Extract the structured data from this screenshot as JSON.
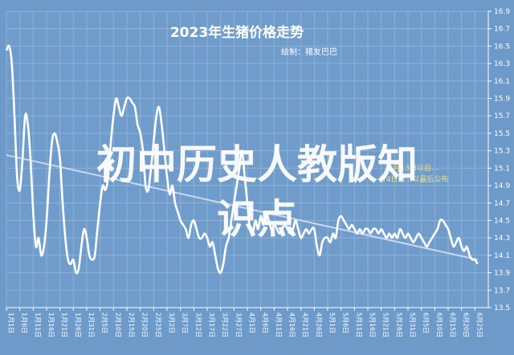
{
  "chart_data": {
    "type": "line",
    "title": "2023年生猪价格走势",
    "subtitle": "绘制：猪友巴巴",
    "xlabel": "",
    "ylabel": "",
    "ylim": [
      13.5,
      16.9
    ],
    "yticks": [
      "16.9",
      "16.7",
      "16.5",
      "16.3",
      "16.1",
      "15.9",
      "15.7",
      "15.5",
      "15.3",
      "15.1",
      "14.9",
      "14.7",
      "14.5",
      "14.3",
      "14.1",
      "13.9",
      "13.7",
      "13.5"
    ],
    "x_tick_labels": [
      "1月1日",
      "1月6日",
      "1月11日",
      "1月16日",
      "1月21日",
      "1月26日",
      "1月31日",
      "2月5日",
      "2月10日",
      "2月15日",
      "2月20日",
      "2月25日",
      "3月2日",
      "3月7日",
      "3月12日",
      "3月17日",
      "3月22日",
      "3月27日",
      "4月1日",
      "4月6日",
      "4月11日",
      "4月16日",
      "4月21日",
      "4月26日",
      "5月1日",
      "5月6日",
      "5月11日",
      "5月16日",
      "5月21日",
      "5月26日",
      "5月31日",
      "6月5日",
      "6月10日",
      "6月15日",
      "6月20日",
      "6月25日"
    ],
    "x_start": "2023-01-01",
    "x_end": "2023-06-30",
    "grid": true,
    "series": [
      {
        "name": "",
        "color": "#ffffff",
        "points": [
          [
            "2023-01-01",
            16.45
          ],
          [
            "2023-01-02",
            16.5
          ],
          [
            "2023-01-03",
            16.3
          ],
          [
            "2023-01-04",
            15.7
          ],
          [
            "2023-01-05",
            15.0
          ],
          [
            "2023-01-06",
            14.85
          ],
          [
            "2023-01-07",
            15.2
          ],
          [
            "2023-01-08",
            15.7
          ],
          [
            "2023-01-09",
            15.6
          ],
          [
            "2023-01-10",
            15.2
          ],
          [
            "2023-01-11",
            14.6
          ],
          [
            "2023-01-12",
            14.2
          ],
          [
            "2023-01-13",
            14.3
          ],
          [
            "2023-01-14",
            14.1
          ],
          [
            "2023-01-15",
            14.2
          ],
          [
            "2023-01-16",
            14.5
          ],
          [
            "2023-01-17",
            15.0
          ],
          [
            "2023-01-18",
            15.4
          ],
          [
            "2023-01-19",
            15.5
          ],
          [
            "2023-01-20",
            15.4
          ],
          [
            "2023-01-21",
            15.2
          ],
          [
            "2023-01-22",
            14.7
          ],
          [
            "2023-01-23",
            14.3
          ],
          [
            "2023-01-24",
            14.05
          ],
          [
            "2023-01-25",
            14.0
          ],
          [
            "2023-01-26",
            14.05
          ],
          [
            "2023-01-27",
            13.9
          ],
          [
            "2023-01-28",
            13.95
          ],
          [
            "2023-01-29",
            14.2
          ],
          [
            "2023-01-30",
            14.4
          ],
          [
            "2023-01-31",
            14.3
          ],
          [
            "2023-02-01",
            14.1
          ],
          [
            "2023-02-02",
            14.05
          ],
          [
            "2023-02-03",
            14.1
          ],
          [
            "2023-02-04",
            14.4
          ],
          [
            "2023-02-05",
            14.7
          ],
          [
            "2023-02-06",
            14.9
          ],
          [
            "2023-02-07",
            14.85
          ],
          [
            "2023-02-08",
            15.0
          ],
          [
            "2023-02-09",
            15.4
          ],
          [
            "2023-02-10",
            15.7
          ],
          [
            "2023-02-11",
            15.9
          ],
          [
            "2023-02-12",
            15.8
          ],
          [
            "2023-02-13",
            15.7
          ],
          [
            "2023-02-14",
            15.8
          ],
          [
            "2023-02-15",
            15.9
          ],
          [
            "2023-02-16",
            15.9
          ],
          [
            "2023-02-17",
            15.85
          ],
          [
            "2023-02-18",
            15.8
          ],
          [
            "2023-02-19",
            15.6
          ],
          [
            "2023-02-20",
            15.5
          ],
          [
            "2023-02-21",
            15.3
          ],
          [
            "2023-02-22",
            14.9
          ],
          [
            "2023-02-23",
            14.85
          ],
          [
            "2023-02-24",
            15.1
          ],
          [
            "2023-02-25",
            15.4
          ],
          [
            "2023-02-26",
            15.7
          ],
          [
            "2023-02-27",
            15.8
          ],
          [
            "2023-02-28",
            15.6
          ],
          [
            "2023-03-01",
            15.3
          ],
          [
            "2023-03-02",
            15.0
          ],
          [
            "2023-03-03",
            14.8
          ],
          [
            "2023-03-04",
            14.9
          ],
          [
            "2023-03-05",
            14.7
          ],
          [
            "2023-03-06",
            14.6
          ],
          [
            "2023-03-07",
            14.5
          ],
          [
            "2023-03-08",
            14.45
          ],
          [
            "2023-03-09",
            14.4
          ],
          [
            "2023-03-10",
            14.3
          ],
          [
            "2023-03-11",
            14.45
          ],
          [
            "2023-03-12",
            14.5
          ],
          [
            "2023-03-13",
            14.4
          ],
          [
            "2023-03-14",
            14.3
          ],
          [
            "2023-03-15",
            14.3
          ],
          [
            "2023-03-16",
            14.35
          ],
          [
            "2023-03-17",
            14.3
          ],
          [
            "2023-03-18",
            14.2
          ],
          [
            "2023-03-19",
            14.25
          ],
          [
            "2023-03-20",
            14.1
          ],
          [
            "2023-03-21",
            13.95
          ],
          [
            "2023-03-22",
            13.9
          ],
          [
            "2023-03-23",
            14.0
          ],
          [
            "2023-03-24",
            14.2
          ],
          [
            "2023-03-25",
            14.3
          ],
          [
            "2023-03-26",
            14.5
          ],
          [
            "2023-03-27",
            14.7
          ],
          [
            "2023-03-28",
            14.9
          ],
          [
            "2023-03-29",
            15.1
          ],
          [
            "2023-03-30",
            15.3
          ],
          [
            "2023-03-31",
            15.0
          ],
          [
            "2023-04-01",
            14.7
          ],
          [
            "2023-04-02",
            14.4
          ],
          [
            "2023-04-03",
            14.35
          ],
          [
            "2023-04-04",
            14.5
          ],
          [
            "2023-04-05",
            14.4
          ],
          [
            "2023-04-06",
            14.55
          ],
          [
            "2023-04-07",
            14.45
          ],
          [
            "2023-04-08",
            14.6
          ],
          [
            "2023-04-09",
            14.5
          ],
          [
            "2023-04-10",
            14.4
          ],
          [
            "2023-04-11",
            14.45
          ],
          [
            "2023-04-12",
            14.4
          ],
          [
            "2023-04-13",
            14.35
          ],
          [
            "2023-04-14",
            14.4
          ],
          [
            "2023-04-15",
            14.45
          ],
          [
            "2023-04-16",
            14.4
          ],
          [
            "2023-04-17",
            14.35
          ],
          [
            "2023-04-18",
            14.4
          ],
          [
            "2023-04-19",
            14.5
          ],
          [
            "2023-04-20",
            14.4
          ],
          [
            "2023-04-21",
            14.3
          ],
          [
            "2023-04-22",
            14.35
          ],
          [
            "2023-04-23",
            14.4
          ],
          [
            "2023-04-24",
            14.35
          ],
          [
            "2023-04-25",
            14.4
          ],
          [
            "2023-04-26",
            14.4
          ],
          [
            "2023-04-27",
            14.2
          ],
          [
            "2023-04-28",
            14.1
          ],
          [
            "2023-04-29",
            14.25
          ],
          [
            "2023-04-30",
            14.3
          ],
          [
            "2023-05-01",
            14.3
          ],
          [
            "2023-05-02",
            14.25
          ],
          [
            "2023-05-03",
            14.35
          ],
          [
            "2023-05-04",
            14.3
          ],
          [
            "2023-05-05",
            14.5
          ],
          [
            "2023-05-06",
            14.55
          ],
          [
            "2023-05-07",
            14.5
          ],
          [
            "2023-05-08",
            14.45
          ],
          [
            "2023-05-09",
            14.4
          ],
          [
            "2023-05-10",
            14.45
          ],
          [
            "2023-05-11",
            14.4
          ],
          [
            "2023-05-12",
            14.35
          ],
          [
            "2023-05-13",
            14.4
          ],
          [
            "2023-05-14",
            14.35
          ],
          [
            "2023-05-15",
            14.4
          ],
          [
            "2023-05-16",
            14.4
          ],
          [
            "2023-05-17",
            14.35
          ],
          [
            "2023-05-18",
            14.4
          ],
          [
            "2023-05-19",
            14.4
          ],
          [
            "2023-05-20",
            14.35
          ],
          [
            "2023-05-21",
            14.4
          ],
          [
            "2023-05-22",
            14.35
          ],
          [
            "2023-05-23",
            14.3
          ],
          [
            "2023-05-24",
            14.35
          ],
          [
            "2023-05-25",
            14.3
          ],
          [
            "2023-05-26",
            14.35
          ],
          [
            "2023-05-27",
            14.3
          ],
          [
            "2023-05-28",
            14.4
          ],
          [
            "2023-05-29",
            14.35
          ],
          [
            "2023-05-30",
            14.3
          ],
          [
            "2023-05-31",
            14.35
          ],
          [
            "2023-06-01",
            14.3
          ],
          [
            "2023-06-02",
            14.25
          ],
          [
            "2023-06-03",
            14.3
          ],
          [
            "2023-06-04",
            14.35
          ],
          [
            "2023-06-05",
            14.3
          ],
          [
            "2023-06-06",
            14.25
          ],
          [
            "2023-06-07",
            14.2
          ],
          [
            "2023-06-08",
            14.25
          ],
          [
            "2023-06-09",
            14.3
          ],
          [
            "2023-06-10",
            14.35
          ],
          [
            "2023-06-11",
            14.4
          ],
          [
            "2023-06-12",
            14.5
          ],
          [
            "2023-06-13",
            14.5
          ],
          [
            "2023-06-14",
            14.45
          ],
          [
            "2023-06-15",
            14.4
          ],
          [
            "2023-06-16",
            14.3
          ],
          [
            "2023-06-17",
            14.2
          ],
          [
            "2023-06-18",
            14.25
          ],
          [
            "2023-06-19",
            14.3
          ],
          [
            "2023-06-20",
            14.2
          ],
          [
            "2023-06-21",
            14.15
          ],
          [
            "2023-06-22",
            14.2
          ],
          [
            "2023-06-23",
            14.1
          ],
          [
            "2023-06-24",
            14.05
          ],
          [
            "2023-06-25",
            14.05
          ],
          [
            "2023-06-26",
            14.0
          ]
        ]
      }
    ],
    "trendline": {
      "color": "#c9d9ee",
      "points": [
        [
          "2023-01-01",
          15.25
        ],
        [
          "2023-06-26",
          14.05
        ]
      ]
    },
    "annotations": [
      "2月13日以后…",
      "分4日当…以最后公布"
    ],
    "watermark": {
      "line1": "初中历史人教版知",
      "line2": "识点"
    },
    "colors": {
      "background": "#6d9ac9",
      "plot_background": "#6f9ccb",
      "grid": "#8fb2d8",
      "axis": "#ffffff",
      "text": "#ffffff",
      "annotation": "#f5e08a",
      "watermark": "#ffffff"
    }
  }
}
